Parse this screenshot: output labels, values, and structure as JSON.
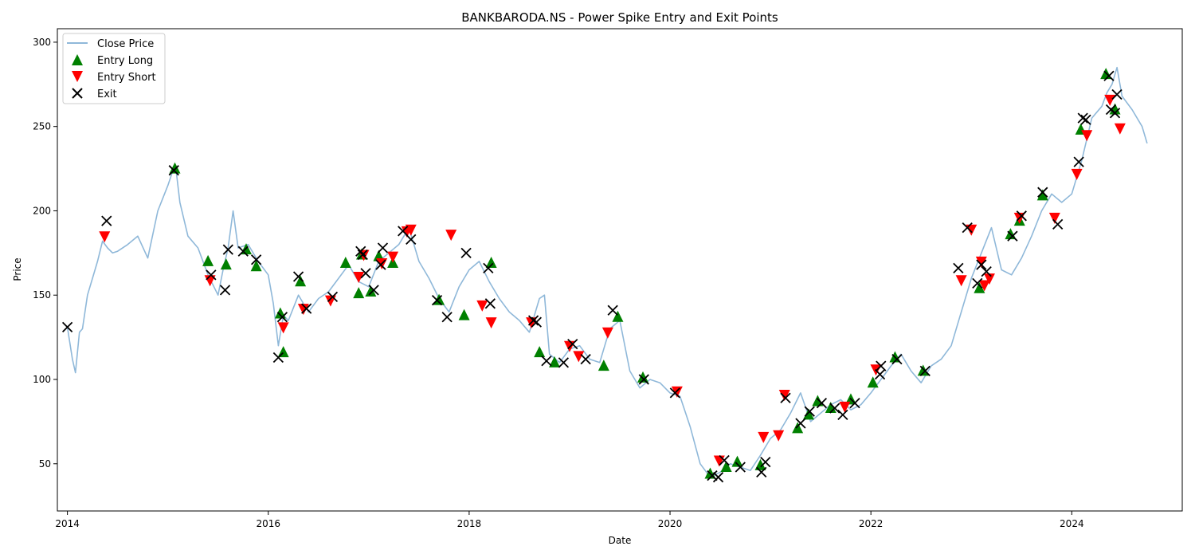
{
  "colors": {
    "price_line": "#8fb8d9",
    "entry_long": "#008000",
    "entry_short": "#ff0000",
    "exit": "#000000"
  },
  "chart_data": {
    "type": "line",
    "title": "BANKBARODA.NS - Power Spike Entry and Exit Points",
    "xlabel": "Date",
    "ylabel": "Price",
    "xlim": [
      2013.9,
      2025.1
    ],
    "ylim": [
      22,
      308
    ],
    "xticks": [
      2014,
      2016,
      2018,
      2020,
      2022,
      2024
    ],
    "xtick_labels": [
      "2014",
      "2016",
      "2018",
      "2020",
      "2022",
      "2024"
    ],
    "yticks": [
      50,
      100,
      150,
      200,
      250,
      300
    ],
    "ytick_labels": [
      "50",
      "100",
      "150",
      "200",
      "250",
      "300"
    ],
    "grid": false,
    "legend_position": "top-left",
    "legend": [
      "Close Price",
      "Entry Long",
      "Entry Short",
      "Exit"
    ],
    "close_price": {
      "x": [
        2014.0,
        2014.05,
        2014.08,
        2014.12,
        2014.15,
        2014.2,
        2014.25,
        2014.3,
        2014.35,
        2014.4,
        2014.45,
        2014.5,
        2014.6,
        2014.7,
        2014.8,
        2014.9,
        2015.0,
        2015.04,
        2015.08,
        2015.12,
        2015.2,
        2015.3,
        2015.4,
        2015.5,
        2015.55,
        2015.6,
        2015.65,
        2015.7,
        2015.8,
        2015.9,
        2016.0,
        2016.05,
        2016.1,
        2016.15,
        2016.2,
        2016.3,
        2016.4,
        2016.5,
        2016.6,
        2016.7,
        2016.8,
        2016.9,
        2017.0,
        2017.1,
        2017.2,
        2017.3,
        2017.4,
        2017.5,
        2017.6,
        2017.7,
        2017.8,
        2017.9,
        2018.0,
        2018.1,
        2018.2,
        2018.3,
        2018.4,
        2018.5,
        2018.6,
        2018.7,
        2018.75,
        2018.8,
        2018.9,
        2019.0,
        2019.1,
        2019.2,
        2019.3,
        2019.4,
        2019.5,
        2019.6,
        2019.7,
        2019.8,
        2019.9,
        2020.0,
        2020.1,
        2020.2,
        2020.3,
        2020.4,
        2020.5,
        2020.6,
        2020.7,
        2020.8,
        2020.9,
        2021.0,
        2021.1,
        2021.2,
        2021.3,
        2021.4,
        2021.5,
        2021.6,
        2021.7,
        2021.8,
        2021.9,
        2022.0,
        2022.1,
        2022.2,
        2022.3,
        2022.4,
        2022.5,
        2022.6,
        2022.7,
        2022.8,
        2022.9,
        2023.0,
        2023.1,
        2023.2,
        2023.3,
        2023.4,
        2023.5,
        2023.6,
        2023.7,
        2023.8,
        2023.9,
        2024.0,
        2024.1,
        2024.2,
        2024.3,
        2024.35,
        2024.4,
        2024.45,
        2024.5,
        2024.6,
        2024.7,
        2024.75
      ],
      "y": [
        131,
        112,
        104,
        128,
        130,
        150,
        160,
        170,
        182,
        178,
        175,
        176,
        180,
        185,
        172,
        200,
        215,
        222,
        225,
        205,
        185,
        178,
        162,
        150,
        165,
        178,
        200,
        178,
        180,
        170,
        162,
        145,
        120,
        138,
        135,
        150,
        140,
        148,
        152,
        160,
        168,
        158,
        155,
        170,
        175,
        180,
        190,
        170,
        160,
        148,
        140,
        155,
        165,
        170,
        158,
        148,
        140,
        135,
        128,
        148,
        150,
        115,
        110,
        118,
        120,
        112,
        110,
        130,
        135,
        105,
        95,
        100,
        98,
        92,
        90,
        72,
        50,
        42,
        45,
        50,
        48,
        46,
        55,
        65,
        70,
        80,
        92,
        75,
        80,
        85,
        88,
        82,
        85,
        92,
        100,
        108,
        115,
        105,
        98,
        108,
        112,
        120,
        140,
        160,
        175,
        190,
        165,
        162,
        172,
        185,
        200,
        210,
        205,
        210,
        230,
        255,
        262,
        270,
        275,
        285,
        268,
        260,
        250,
        240
      ]
    },
    "entry_long": {
      "x": [
        2015.07,
        2015.4,
        2015.58,
        2015.78,
        2015.88,
        2016.12,
        2016.15,
        2016.32,
        2016.77,
        2016.9,
        2016.93,
        2017.02,
        2017.1,
        2017.24,
        2017.7,
        2017.95,
        2018.22,
        2018.7,
        2018.85,
        2019.34,
        2019.48,
        2019.73,
        2020.4,
        2020.56,
        2020.67,
        2020.9,
        2021.27,
        2021.38,
        2021.47,
        2021.6,
        2021.8,
        2022.02,
        2022.24,
        2022.52,
        2023.08,
        2023.39,
        2023.48,
        2023.71,
        2024.09,
        2024.34,
        2024.43
      ],
      "y": [
        225,
        170,
        168,
        177,
        167,
        139,
        116,
        158,
        169,
        151,
        174,
        152,
        173,
        169,
        147,
        138,
        169,
        116,
        110,
        108,
        137,
        101,
        44,
        48,
        51,
        49,
        71,
        79,
        87,
        83,
        88,
        98,
        113,
        105,
        154,
        186,
        194,
        209,
        248,
        281,
        260
      ]
    },
    "entry_short": {
      "x": [
        2014.37,
        2015.42,
        2016.15,
        2016.35,
        2016.62,
        2016.9,
        2016.95,
        2017.13,
        2017.24,
        2017.38,
        2017.42,
        2017.82,
        2018.13,
        2018.22,
        2018.62,
        2019.0,
        2019.09,
        2019.38,
        2020.07,
        2020.49,
        2020.93,
        2021.08,
        2021.14,
        2021.74,
        2022.05,
        2022.9,
        2023.0,
        2023.1,
        2023.13,
        2023.18,
        2023.48,
        2023.83,
        2024.05,
        2024.15,
        2024.38,
        2024.48
      ],
      "y": [
        185,
        159,
        131,
        142,
        147,
        161,
        174,
        169,
        173,
        188,
        189,
        186,
        144,
        134,
        134,
        120,
        114,
        128,
        93,
        52,
        66,
        67,
        91,
        84,
        106,
        159,
        189,
        170,
        156,
        160,
        196,
        196,
        222,
        245,
        266,
        249
      ]
    },
    "exit": {
      "x": [
        2014.0,
        2014.39,
        2015.06,
        2015.43,
        2015.57,
        2015.6,
        2015.75,
        2015.88,
        2016.1,
        2016.14,
        2016.3,
        2016.38,
        2016.64,
        2016.92,
        2016.94,
        2016.97,
        2017.05,
        2017.12,
        2017.14,
        2017.34,
        2017.42,
        2017.68,
        2017.78,
        2017.97,
        2018.19,
        2018.21,
        2018.64,
        2018.67,
        2018.77,
        2018.94,
        2019.03,
        2019.16,
        2019.43,
        2019.74,
        2020.05,
        2020.42,
        2020.48,
        2020.54,
        2020.7,
        2020.91,
        2020.95,
        2021.15,
        2021.3,
        2021.39,
        2021.51,
        2021.64,
        2021.72,
        2021.84,
        2022.09,
        2022.1,
        2022.26,
        2022.54,
        2022.87,
        2022.96,
        2023.06,
        2023.1,
        2023.15,
        2023.41,
        2023.5,
        2023.71,
        2023.86,
        2024.07,
        2024.11,
        2024.14,
        2024.37,
        2024.39,
        2024.43,
        2024.45
      ],
      "y": [
        131,
        194,
        224,
        162,
        153,
        177,
        176,
        171,
        113,
        137,
        161,
        142,
        149,
        176,
        174,
        163,
        153,
        168,
        178,
        188,
        183,
        147,
        137,
        175,
        166,
        145,
        135,
        134,
        111,
        110,
        121,
        112,
        141,
        100,
        92,
        43,
        42,
        52,
        48,
        45,
        51,
        89,
        74,
        81,
        86,
        83,
        79,
        86,
        103,
        108,
        112,
        105,
        166,
        190,
        157,
        168,
        164,
        185,
        197,
        211,
        192,
        229,
        255,
        254,
        280,
        260,
        258,
        269
      ]
    }
  }
}
